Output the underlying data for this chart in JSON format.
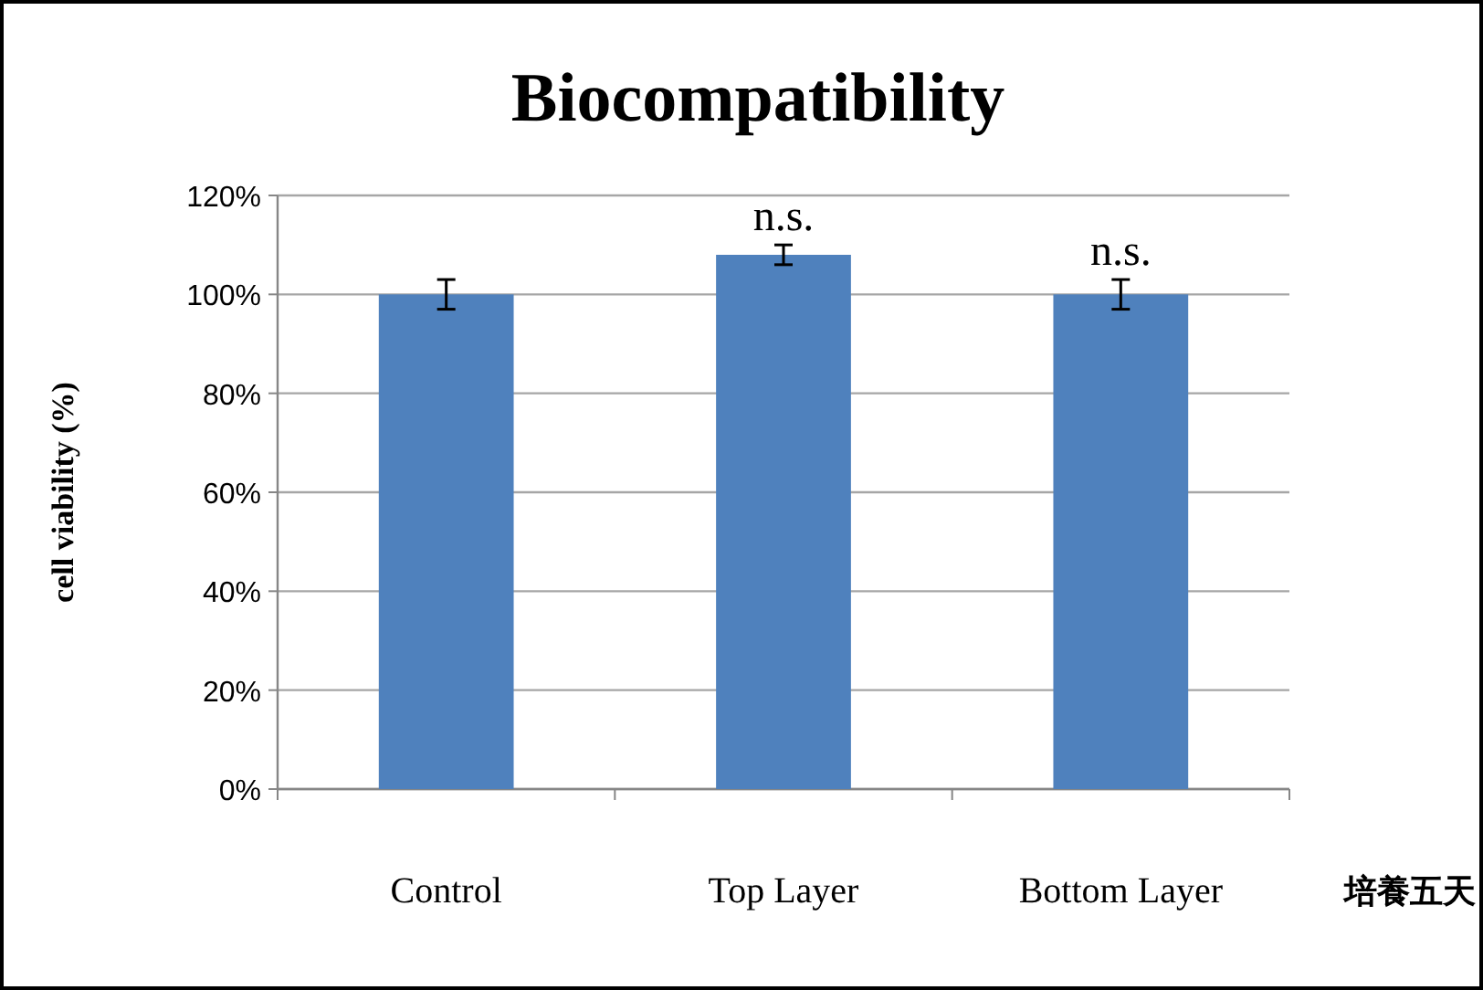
{
  "chart_data": {
    "type": "bar",
    "title": "Biocompatibility",
    "ylabel": "cell viability (%)",
    "categories": [
      "Control",
      "Top Layer",
      "Bottom Layer"
    ],
    "values": [
      100,
      108,
      100
    ],
    "errors": [
      3,
      2,
      3
    ],
    "color": "#4f81bd",
    "ylim": [
      0,
      120
    ],
    "yticks": [
      {
        "value": 0,
        "label": "0%"
      },
      {
        "value": 20,
        "label": "20%"
      },
      {
        "value": 40,
        "label": "40%"
      },
      {
        "value": 60,
        "label": "60%"
      },
      {
        "value": 80,
        "label": "80%"
      },
      {
        "value": 100,
        "label": "100%"
      },
      {
        "value": 120,
        "label": "120%"
      }
    ],
    "grid": "y",
    "annotations": [
      {
        "text": "n.s.",
        "x": "Top Layer",
        "y": 110
      },
      {
        "text": "n.s.",
        "x": "Bottom Layer",
        "y": 103
      },
      "培養五天"
    ]
  }
}
